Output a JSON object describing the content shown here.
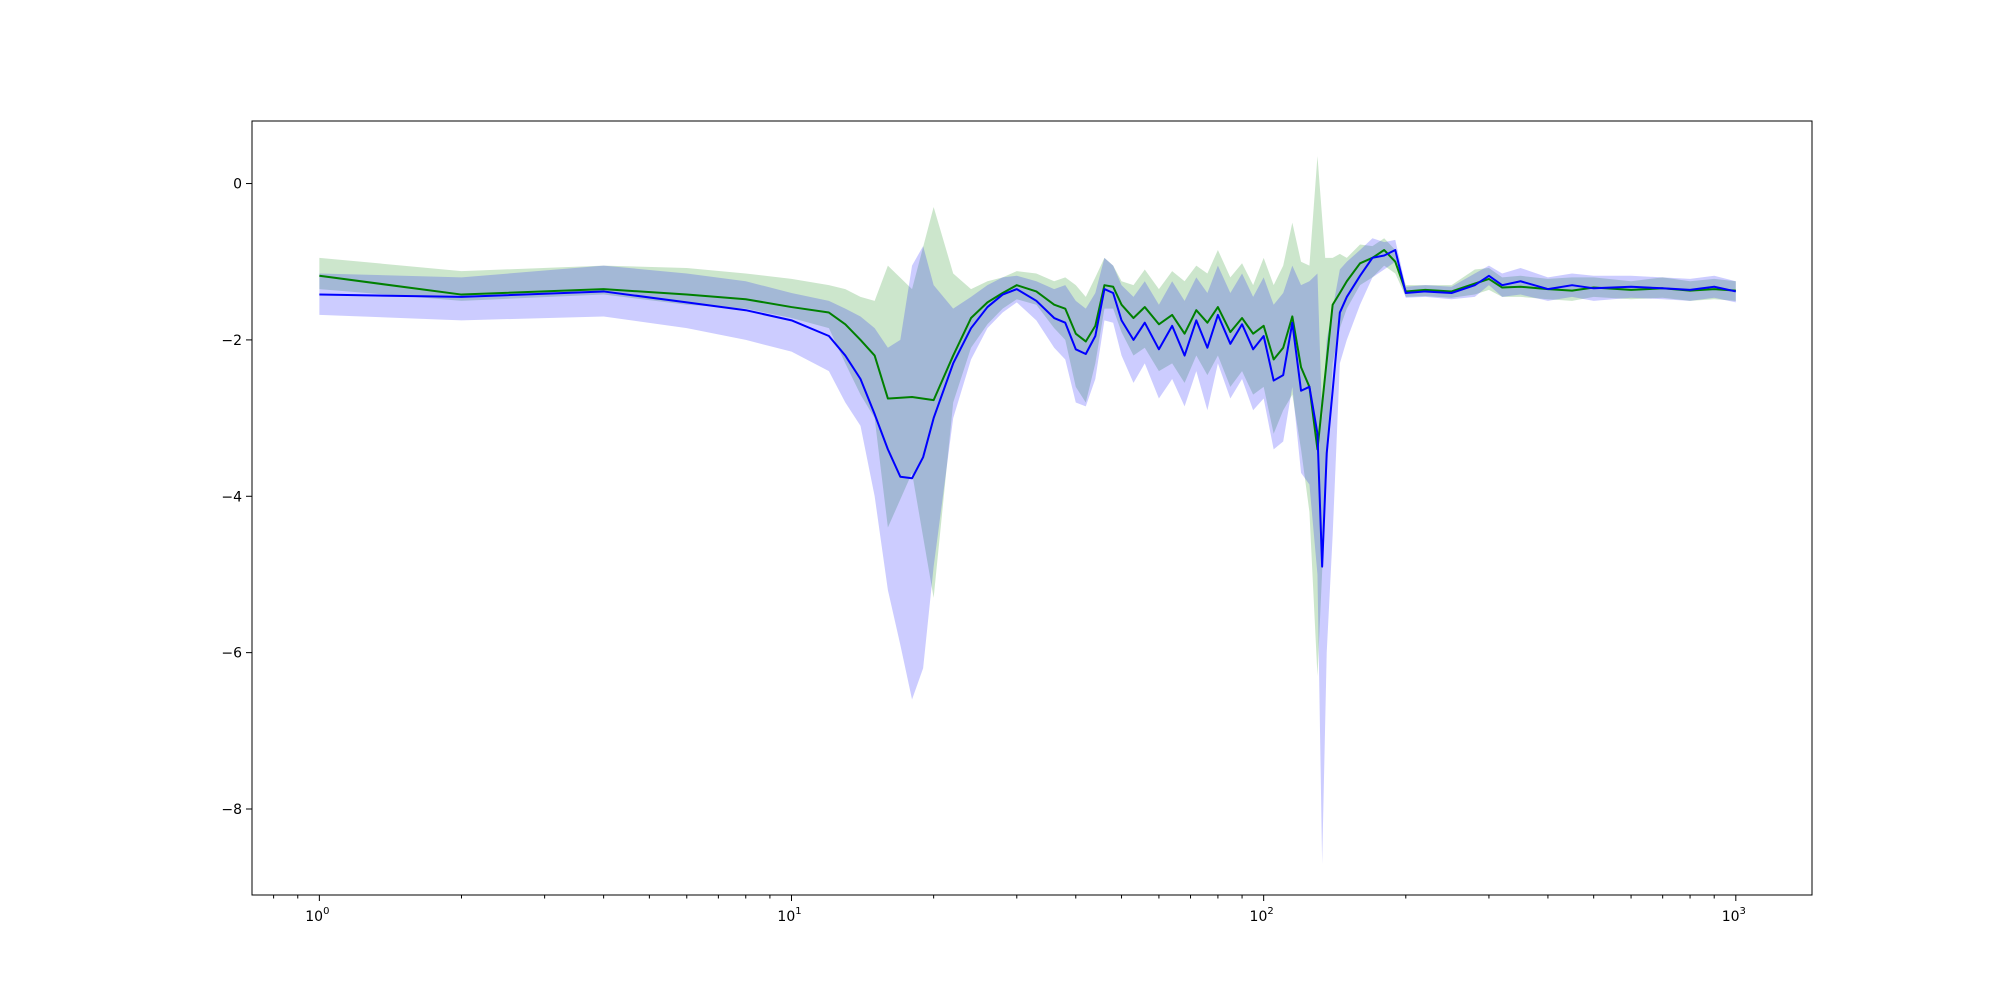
{
  "chart_data": {
    "type": "line",
    "title": "",
    "xlabel": "",
    "ylabel": "",
    "x_scale": "log",
    "xlim": [
      0.72,
      1450
    ],
    "ylim": [
      -9.1,
      0.8
    ],
    "grid": false,
    "legend": "none",
    "x_ticks": [
      {
        "value": 1,
        "base": "10",
        "exp": "0"
      },
      {
        "value": 10,
        "base": "10",
        "exp": "1"
      },
      {
        "value": 100,
        "base": "10",
        "exp": "2"
      },
      {
        "value": 1000,
        "base": "10",
        "exp": "3"
      }
    ],
    "y_ticks": [
      {
        "value": 0,
        "label": "0"
      },
      {
        "value": -2,
        "label": "−2"
      },
      {
        "value": -4,
        "label": "−4"
      },
      {
        "value": -6,
        "label": "−6"
      },
      {
        "value": -8,
        "label": "−8"
      }
    ],
    "colors": {
      "green_line": "#008000",
      "green_band": "#008000",
      "blue_line": "#0000ff",
      "blue_band": "#0000ff",
      "axes": "#000000"
    },
    "series": [
      {
        "color": "green",
        "x": [
          1,
          2,
          4,
          6,
          8,
          10,
          12,
          13,
          14,
          15,
          16,
          18,
          20,
          22,
          24,
          26,
          28,
          30,
          33,
          36,
          38,
          40,
          42,
          44,
          46,
          48,
          50,
          53,
          56,
          60,
          64,
          68,
          72,
          76,
          80,
          85,
          90,
          95,
          100,
          105,
          110,
          115,
          120,
          125,
          130,
          135,
          140,
          145,
          150,
          160,
          170,
          180,
          190,
          200,
          220,
          250,
          280,
          300,
          320,
          350,
          400,
          450,
          500,
          600,
          700,
          800,
          900,
          1000
        ],
        "mean": [
          -1.18,
          -1.42,
          -1.35,
          -1.42,
          -1.48,
          -1.58,
          -1.65,
          -1.8,
          -2.0,
          -2.2,
          -2.75,
          -2.73,
          -2.77,
          -2.2,
          -1.72,
          -1.52,
          -1.4,
          -1.3,
          -1.38,
          -1.55,
          -1.6,
          -1.92,
          -2.02,
          -1.82,
          -1.3,
          -1.32,
          -1.55,
          -1.72,
          -1.58,
          -1.8,
          -1.68,
          -1.92,
          -1.62,
          -1.78,
          -1.58,
          -1.9,
          -1.72,
          -1.92,
          -1.82,
          -2.25,
          -2.1,
          -1.7,
          -2.35,
          -2.6,
          -3.4,
          -2.45,
          -1.55,
          -1.4,
          -1.25,
          -1.02,
          -0.95,
          -0.85,
          -1.0,
          -1.38,
          -1.36,
          -1.38,
          -1.28,
          -1.22,
          -1.33,
          -1.32,
          -1.35,
          -1.37,
          -1.33,
          -1.36,
          -1.34,
          -1.37,
          -1.35,
          -1.37
        ],
        "upper": [
          -0.95,
          -1.12,
          -1.05,
          -1.08,
          -1.15,
          -1.22,
          -1.3,
          -1.35,
          -1.45,
          -1.5,
          -1.05,
          -1.35,
          -0.3,
          -1.15,
          -1.35,
          -1.25,
          -1.2,
          -1.12,
          -1.15,
          -1.25,
          -1.2,
          -1.3,
          -1.45,
          -1.2,
          -0.95,
          -1.05,
          -1.25,
          -1.3,
          -1.1,
          -1.35,
          -1.12,
          -1.25,
          -1.05,
          -1.15,
          -0.85,
          -1.2,
          -1.02,
          -1.3,
          -0.95,
          -1.3,
          -1.05,
          -0.5,
          -1.0,
          -1.05,
          0.35,
          -0.95,
          -0.95,
          -0.9,
          -0.95,
          -0.78,
          -0.8,
          -0.7,
          -0.85,
          -1.3,
          -1.3,
          -1.3,
          -1.1,
          -1.08,
          -1.2,
          -1.18,
          -1.22,
          -1.2,
          -1.2,
          -1.25,
          -1.2,
          -1.25,
          -1.22,
          -1.25
        ],
        "lower": [
          -1.35,
          -1.5,
          -1.42,
          -1.55,
          -1.6,
          -1.72,
          -1.85,
          -2.3,
          -2.7,
          -3.0,
          -4.4,
          -3.7,
          -5.3,
          -2.8,
          -2.1,
          -1.8,
          -1.6,
          -1.48,
          -1.55,
          -1.85,
          -2.0,
          -2.6,
          -2.8,
          -2.3,
          -1.6,
          -1.6,
          -1.9,
          -2.2,
          -2.1,
          -2.4,
          -2.3,
          -2.55,
          -2.2,
          -2.45,
          -2.2,
          -2.6,
          -2.4,
          -2.7,
          -2.6,
          -3.2,
          -2.9,
          -2.7,
          -3.4,
          -4.2,
          -6.3,
          -4.1,
          -2.3,
          -1.85,
          -1.6,
          -1.3,
          -1.2,
          -1.05,
          -1.15,
          -1.45,
          -1.44,
          -1.46,
          -1.42,
          -1.36,
          -1.45,
          -1.45,
          -1.48,
          -1.5,
          -1.45,
          -1.48,
          -1.46,
          -1.5,
          -1.48,
          -1.5
        ]
      },
      {
        "color": "blue",
        "x": [
          1,
          2,
          4,
          6,
          8,
          10,
          12,
          13,
          14,
          15,
          16,
          17,
          18,
          19,
          20,
          22,
          24,
          26,
          28,
          30,
          33,
          36,
          38,
          40,
          42,
          44,
          46,
          48,
          50,
          53,
          56,
          60,
          64,
          68,
          72,
          76,
          80,
          85,
          90,
          95,
          100,
          105,
          110,
          115,
          120,
          125,
          130,
          133,
          136,
          140,
          145,
          150,
          160,
          170,
          180,
          190,
          200,
          220,
          250,
          280,
          300,
          320,
          350,
          400,
          450,
          500,
          600,
          700,
          800,
          900,
          1000
        ],
        "mean": [
          -1.42,
          -1.45,
          -1.38,
          -1.52,
          -1.62,
          -1.75,
          -1.95,
          -2.2,
          -2.5,
          -2.95,
          -3.4,
          -3.75,
          -3.77,
          -3.5,
          -3.0,
          -2.3,
          -1.85,
          -1.58,
          -1.42,
          -1.35,
          -1.5,
          -1.72,
          -1.78,
          -2.12,
          -2.18,
          -1.95,
          -1.35,
          -1.4,
          -1.75,
          -2.0,
          -1.78,
          -2.12,
          -1.82,
          -2.2,
          -1.75,
          -2.1,
          -1.68,
          -2.05,
          -1.8,
          -2.12,
          -1.95,
          -2.52,
          -2.45,
          -1.78,
          -2.65,
          -2.6,
          -3.2,
          -4.9,
          -3.45,
          -2.65,
          -1.65,
          -1.45,
          -1.18,
          -0.95,
          -0.92,
          -0.85,
          -1.4,
          -1.38,
          -1.4,
          -1.3,
          -1.18,
          -1.3,
          -1.25,
          -1.35,
          -1.3,
          -1.34,
          -1.32,
          -1.34,
          -1.36,
          -1.32,
          -1.38
        ],
        "upper": [
          -1.15,
          -1.2,
          -1.05,
          -1.15,
          -1.25,
          -1.4,
          -1.5,
          -1.6,
          -1.7,
          -1.85,
          -2.1,
          -2.0,
          -1.05,
          -0.8,
          -1.3,
          -1.6,
          -1.45,
          -1.3,
          -1.2,
          -1.18,
          -1.25,
          -1.35,
          -1.3,
          -1.5,
          -1.6,
          -1.4,
          -0.95,
          -1.05,
          -1.3,
          -1.45,
          -1.25,
          -1.55,
          -1.25,
          -1.5,
          -1.2,
          -1.4,
          -1.05,
          -1.4,
          -1.15,
          -1.45,
          -1.2,
          -1.55,
          -1.4,
          -1.05,
          -1.3,
          -1.25,
          -1.15,
          -3.0,
          -2.0,
          -1.6,
          -1.1,
          -1.0,
          -0.85,
          -0.7,
          -0.75,
          -0.72,
          -1.32,
          -1.3,
          -1.32,
          -1.15,
          -1.05,
          -1.15,
          -1.08,
          -1.2,
          -1.15,
          -1.18,
          -1.18,
          -1.2,
          -1.22,
          -1.18,
          -1.25
        ],
        "lower": [
          -1.68,
          -1.75,
          -1.7,
          -1.85,
          -2.0,
          -2.15,
          -2.4,
          -2.8,
          -3.1,
          -4.0,
          -5.2,
          -5.9,
          -6.6,
          -6.2,
          -4.9,
          -3.0,
          -2.25,
          -1.85,
          -1.65,
          -1.52,
          -1.75,
          -2.1,
          -2.25,
          -2.8,
          -2.85,
          -2.5,
          -1.75,
          -1.78,
          -2.2,
          -2.55,
          -2.3,
          -2.75,
          -2.5,
          -2.85,
          -2.4,
          -2.9,
          -2.3,
          -2.75,
          -2.5,
          -2.9,
          -2.75,
          -3.4,
          -3.3,
          -2.6,
          -3.7,
          -3.85,
          -5.0,
          -8.7,
          -6.0,
          -4.5,
          -2.3,
          -2.0,
          -1.55,
          -1.2,
          -1.1,
          -1.0,
          -1.46,
          -1.45,
          -1.48,
          -1.45,
          -1.3,
          -1.45,
          -1.42,
          -1.5,
          -1.45,
          -1.5,
          -1.46,
          -1.48,
          -1.5,
          -1.46,
          -1.52
        ]
      }
    ]
  }
}
